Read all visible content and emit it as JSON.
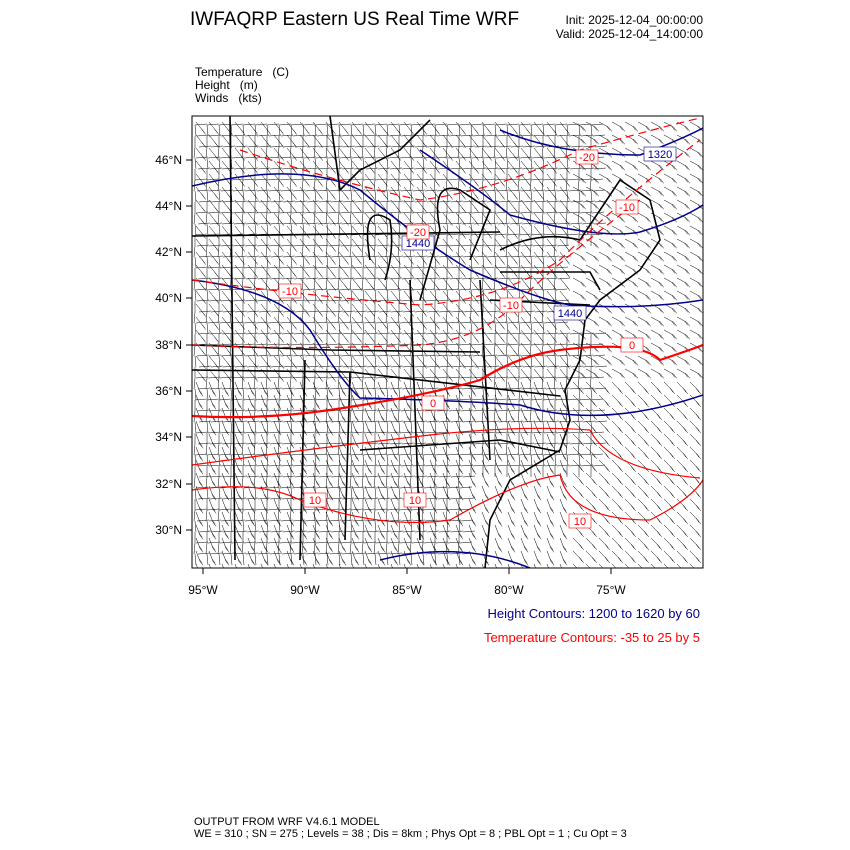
{
  "header": {
    "title": "IWFAQRP Eastern US Real Time WRF",
    "init": "Init: 2025-12-04_00:00:00",
    "valid": "Valid: 2025-12-04_14:00:00"
  },
  "fields": [
    {
      "name": "Temperature",
      "unit": "(C)"
    },
    {
      "name": "Height",
      "unit": "(m)"
    },
    {
      "name": "Winds",
      "unit": "(kts)"
    }
  ],
  "map": {
    "lat_labels": [
      "46°N",
      "44°N",
      "42°N",
      "40°N",
      "38°N",
      "36°N",
      "34°N",
      "32°N",
      "30°N"
    ],
    "lon_labels": [
      "95°W",
      "90°W",
      "85°W",
      "80°W",
      "75°W"
    ],
    "colors": {
      "height": "#00008b",
      "temperature": "#ff0000",
      "boundaries": "#000000"
    },
    "height_labels": [
      "1440",
      "1320",
      "1440"
    ],
    "temperature_labels": [
      "-20",
      "-20",
      "-10",
      "-10",
      "-10",
      "0",
      "0",
      "10",
      "10",
      "10"
    ]
  },
  "legend": {
    "height": "Height Contours: 1200 to 1620 by 60",
    "temperature": "Temperature Contours: -35 to 25 by 5"
  },
  "footer": {
    "line1": "OUTPUT FROM WRF V4.6.1 MODEL",
    "line2": "WE = 310 ; SN = 275 ; Levels = 38 ; Dis = 8km ; Phys Opt = 8 ; PBL Opt = 1 ; Cu Opt = 3"
  }
}
